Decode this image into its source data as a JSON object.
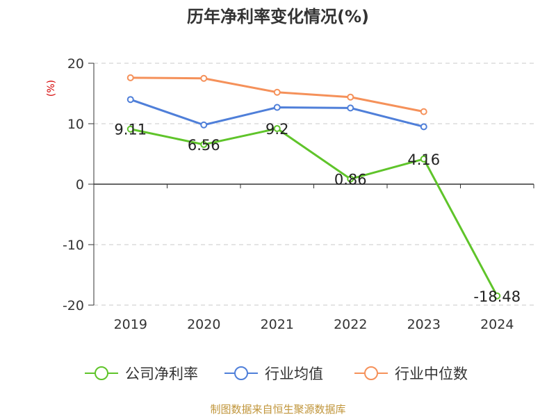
{
  "chart_data": {
    "type": "line",
    "title": "历年净利率变化情况(%)",
    "ylabel": "(%)",
    "xlabel": "",
    "categories": [
      "2019",
      "2020",
      "2021",
      "2022",
      "2023",
      "2024"
    ],
    "ylim": [
      -20,
      20
    ],
    "yticks": [
      20,
      10,
      0,
      -10,
      -20
    ],
    "grid": true,
    "legend_position": "bottom",
    "series": [
      {
        "name": "公司净利率",
        "color": "#5fc42a",
        "values": [
          9.11,
          6.56,
          9.2,
          0.86,
          4.16,
          -18.48
        ],
        "labels": [
          "9.11",
          "6.56",
          "9.2",
          "0.86",
          "4.16",
          "-18.48"
        ]
      },
      {
        "name": "行业均值",
        "color": "#4f7fd9",
        "values": [
          14.0,
          9.8,
          12.7,
          12.6,
          9.5,
          null
        ]
      },
      {
        "name": "行业中位数",
        "color": "#f5915a",
        "values": [
          17.6,
          17.5,
          15.2,
          14.4,
          12.0,
          null
        ]
      }
    ]
  },
  "footer": "制图数据来自恒生聚源数据库"
}
